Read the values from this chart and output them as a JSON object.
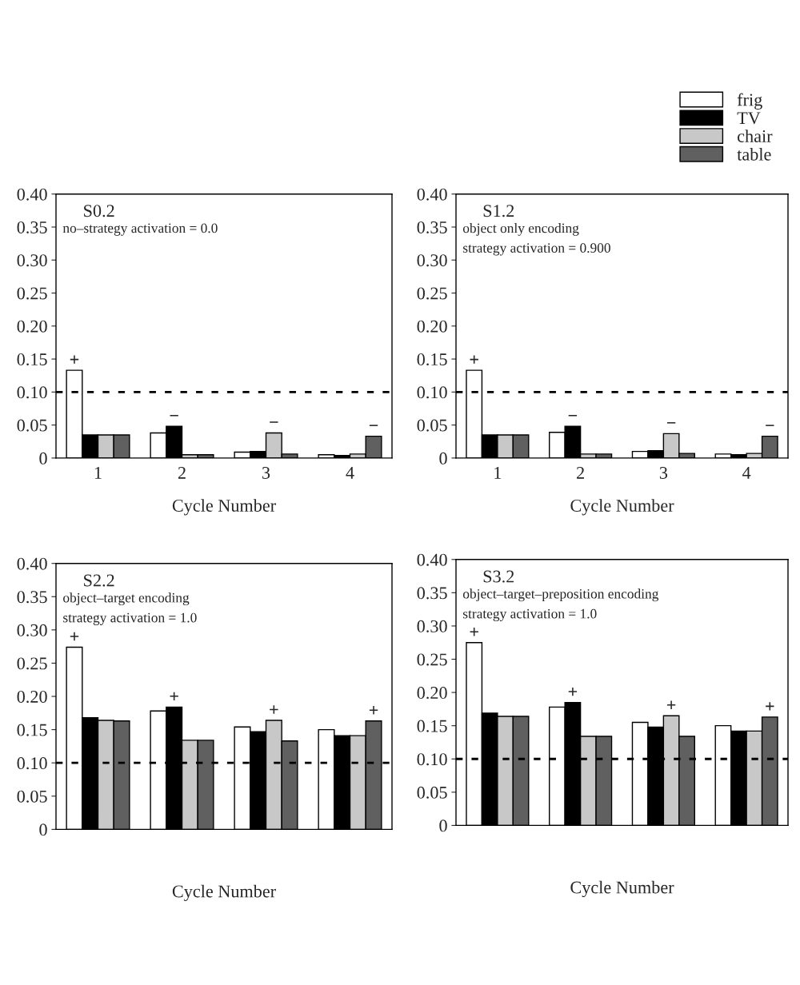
{
  "chart_data": [
    {
      "type": "bar",
      "title": "S0.2",
      "subtitle": "no–strategy activation = 0.0",
      "xlabel": "Cycle Number",
      "categories": [
        "1",
        "2",
        "3",
        "4"
      ],
      "series": [
        {
          "color": "#ffffff",
          "values": [
            0.133,
            0.038,
            0.009,
            0.005
          ],
          "value_labels": [
            "+",
            null,
            null,
            null
          ]
        },
        {
          "color": "#000000",
          "values": [
            0.035,
            0.048,
            0.01,
            0.004
          ],
          "value_labels": [
            null,
            "−",
            null,
            null
          ]
        },
        {
          "color": "#c8c8c8",
          "values": [
            0.035,
            0.005,
            0.038,
            0.006
          ],
          "value_labels": [
            null,
            null,
            "−",
            null
          ]
        },
        {
          "color": "#606060",
          "values": [
            0.035,
            0.005,
            0.006,
            0.033
          ],
          "value_labels": [
            null,
            null,
            null,
            "−"
          ]
        }
      ],
      "ylim": [
        0,
        0.4
      ],
      "yticks": [
        0,
        {
          "value": 0.05,
          "label": "0.05"
        },
        {
          "value": 0.1,
          "label": "0.10"
        },
        {
          "value": 0.15,
          "label": "0.15"
        },
        {
          "value": 0.2,
          "label": "0.20"
        },
        {
          "value": 0.25,
          "label": "0.25"
        },
        {
          "value": 0.3,
          "label": "0.30"
        },
        {
          "value": 0.35,
          "label": "0.35"
        },
        {
          "value": 0.4,
          "label": "0.40"
        }
      ],
      "ref_lines": [
        {
          "axis": "y",
          "value": 0.1,
          "color": "#000000",
          "line_style": "dashed"
        }
      ],
      "grid": false,
      "legend": false
    },
    {
      "type": "bar",
      "title": "S1.2",
      "subtitle": "object only encoding",
      "annotations": [
        "strategy activation = 0.900"
      ],
      "xlabel": "Cycle Number",
      "categories": [
        "1",
        "2",
        "3",
        "4"
      ],
      "series": [
        {
          "name": "frig",
          "color": "#ffffff",
          "values": [
            0.133,
            0.039,
            0.01,
            0.006
          ],
          "value_labels": [
            "+",
            null,
            null,
            null
          ]
        },
        {
          "name": "TV",
          "color": "#000000",
          "values": [
            0.035,
            0.048,
            0.011,
            0.005
          ],
          "value_labels": [
            null,
            "−",
            null,
            null
          ]
        },
        {
          "name": "chair",
          "color": "#c8c8c8",
          "values": [
            0.035,
            0.006,
            0.037,
            0.007
          ],
          "value_labels": [
            null,
            null,
            "−",
            null
          ]
        },
        {
          "name": "table",
          "color": "#606060",
          "values": [
            0.035,
            0.006,
            0.007,
            0.033
          ],
          "value_labels": [
            null,
            null,
            null,
            "−"
          ]
        }
      ],
      "ylim": [
        0,
        0.4
      ],
      "yticks": [
        0,
        {
          "value": 0.05,
          "label": "0.05"
        },
        {
          "value": 0.1,
          "label": "0.10"
        },
        {
          "value": 0.15,
          "label": "0.15"
        },
        {
          "value": 0.2,
          "label": "0.20"
        },
        {
          "value": 0.25,
          "label": "0.25"
        },
        {
          "value": 0.3,
          "label": "0.30"
        },
        {
          "value": 0.35,
          "label": "0.35"
        },
        {
          "value": 0.4,
          "label": "0.40"
        }
      ],
      "ref_lines": [
        {
          "axis": "y",
          "value": 0.1,
          "color": "#000000",
          "line_style": "dashed"
        }
      ],
      "grid": false,
      "legend": "top right"
    },
    {
      "type": "bar",
      "title": "S2.2",
      "subtitle": "object–target encoding",
      "annotations": [
        "strategy activation = 1.0"
      ],
      "xlabel": "Cycle Number",
      "categories": [
        null,
        null,
        null,
        null
      ],
      "series": [
        {
          "color": "#ffffff",
          "values": [
            0.274,
            0.178,
            0.154,
            0.15
          ],
          "value_labels": [
            "+",
            null,
            null,
            null
          ]
        },
        {
          "color": "#000000",
          "values": [
            0.168,
            0.184,
            0.147,
            0.141
          ],
          "value_labels": [
            null,
            "+",
            null,
            null
          ]
        },
        {
          "color": "#c8c8c8",
          "values": [
            0.164,
            0.134,
            0.164,
            0.141
          ],
          "value_labels": [
            null,
            null,
            "+",
            null
          ]
        },
        {
          "color": "#606060",
          "values": [
            0.163,
            0.134,
            0.133,
            0.163
          ],
          "value_labels": [
            null,
            null,
            null,
            "+"
          ]
        }
      ],
      "ylim": [
        0,
        0.4
      ],
      "yticks": [
        0,
        {
          "value": 0.05,
          "label": "0.05"
        },
        {
          "value": 0.1,
          "label": "0.10"
        },
        {
          "value": 0.15,
          "label": "0.15"
        },
        {
          "value": 0.2,
          "label": "0.20"
        },
        {
          "value": 0.25,
          "label": "0.25"
        },
        {
          "value": 0.3,
          "label": "0.30"
        },
        {
          "value": 0.35,
          "label": "0.35"
        },
        {
          "value": 0.4,
          "label": "0.40"
        }
      ],
      "ref_lines": [
        {
          "axis": "y",
          "value": 0.1,
          "color": "#000000",
          "line_style": "dashed"
        }
      ],
      "grid": false,
      "legend": false,
      "tick_labels": "y"
    },
    {
      "type": "bar",
      "title": "S3.2",
      "subtitle": "object–target–preposition encoding",
      "annotations": [
        "strategy activation = 1.0"
      ],
      "xlabel": "Cycle Number",
      "categories": [
        null,
        null,
        null,
        null
      ],
      "series": [
        {
          "color": "#ffffff",
          "values": [
            0.275,
            0.178,
            0.155,
            0.15
          ],
          "value_labels": [
            "+",
            null,
            null,
            null
          ]
        },
        {
          "color": "#000000",
          "values": [
            0.169,
            0.185,
            0.148,
            0.142
          ],
          "value_labels": [
            null,
            "+",
            null,
            null
          ]
        },
        {
          "color": "#c8c8c8",
          "values": [
            0.164,
            0.134,
            0.165,
            0.142
          ],
          "value_labels": [
            null,
            null,
            "+",
            null
          ]
        },
        {
          "color": "#606060",
          "values": [
            0.164,
            0.134,
            0.134,
            0.163
          ],
          "value_labels": [
            null,
            null,
            null,
            "+"
          ]
        }
      ],
      "ylim": [
        0,
        0.4
      ],
      "yticks": [
        0,
        {
          "value": 0.05,
          "label": "0.05"
        },
        {
          "value": 0.1,
          "label": "0.10"
        },
        {
          "value": 0.15,
          "label": "0.15"
        },
        {
          "value": 0.2,
          "label": "0.20"
        },
        {
          "value": 0.25,
          "label": "0.25"
        },
        {
          "value": 0.3,
          "label": "0.30"
        },
        {
          "value": 0.35,
          "label": "0.35"
        },
        {
          "value": 0.4,
          "label": "0.40"
        }
      ],
      "ref_lines": [
        {
          "axis": "y",
          "value": 0.1,
          "color": "#000000",
          "line_style": "dashed"
        }
      ],
      "grid": false,
      "legend": false,
      "tick_labels": "y"
    }
  ]
}
